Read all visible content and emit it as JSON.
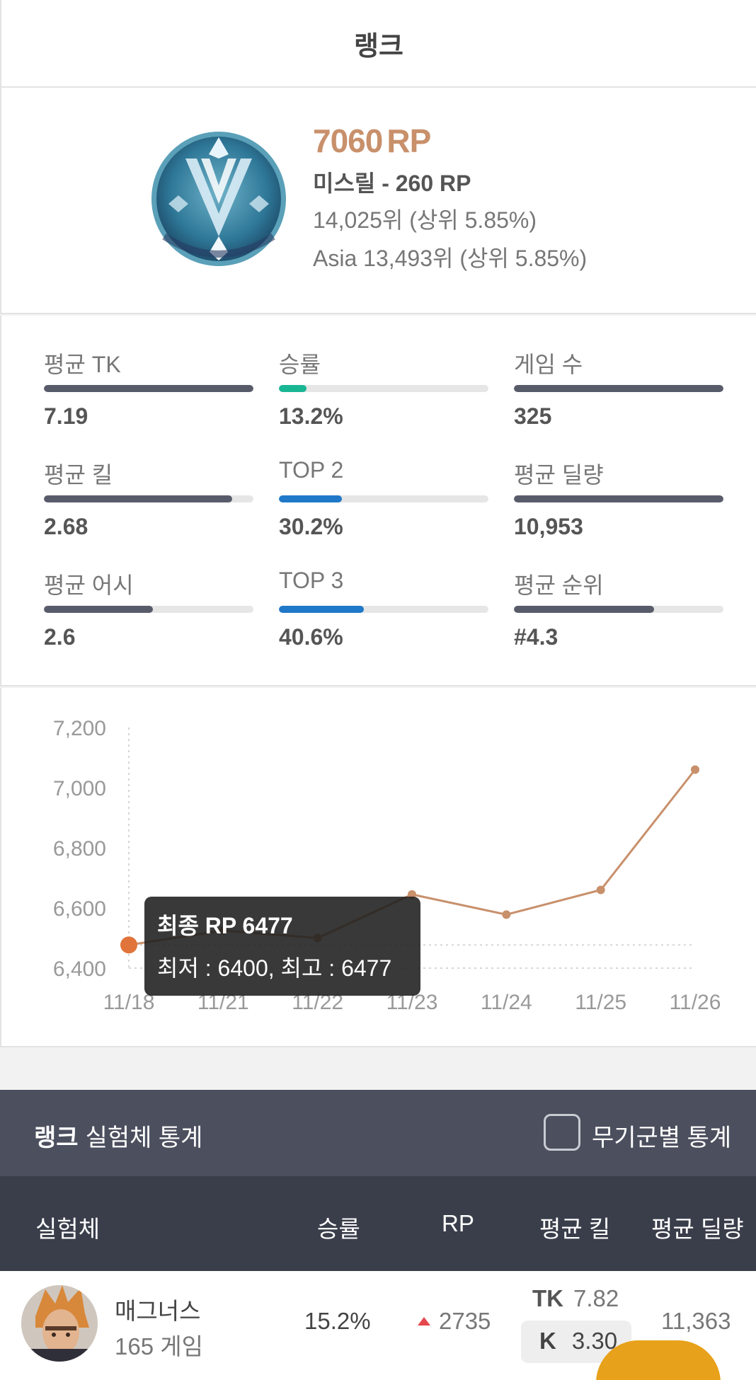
{
  "header": {
    "title": "랭크"
  },
  "rank": {
    "rp_value": "7060",
    "rp_unit": "RP",
    "tier_line": "미스릴 - 260 RP",
    "global_rank": "14,025위 (상위 5.85%)",
    "region_rank": "Asia 13,493위 (상위 5.85%)",
    "emblem_icon": "mithril-tier-emblem-icon"
  },
  "stats": [
    {
      "label": "평균 TK",
      "value": "7.19",
      "bar": 1.0,
      "color": "#585c6a"
    },
    {
      "label": "승률",
      "value": "13.2%",
      "bar": 0.132,
      "color": "#19b694"
    },
    {
      "label": "게임 수",
      "value": "325",
      "bar": 1.0,
      "color": "#585c6a"
    },
    {
      "label": "평균 킬",
      "value": "2.68",
      "bar": 0.9,
      "color": "#585c6a"
    },
    {
      "label": "TOP 2",
      "value": "30.2%",
      "bar": 0.302,
      "color": "#1f78c8"
    },
    {
      "label": "평균 딜량",
      "value": "10,953",
      "bar": 1.0,
      "color": "#585c6a"
    },
    {
      "label": "평균 어시",
      "value": "2.6",
      "bar": 0.52,
      "color": "#585c6a"
    },
    {
      "label": "TOP 3",
      "value": "40.6%",
      "bar": 0.406,
      "color": "#1f78c8"
    },
    {
      "label": "평균 순위",
      "value": "#4.3",
      "bar": 0.67,
      "color": "#585c6a"
    }
  ],
  "chart_data": {
    "type": "line",
    "categories": [
      "11/18",
      "11/21",
      "11/22",
      "11/23",
      "11/24",
      "11/25",
      "11/26"
    ],
    "series": [
      {
        "values": [
          6477,
          6525,
          6500,
          6645,
          6578,
          6660,
          7060
        ]
      }
    ],
    "ylim": [
      6400,
      7200
    ],
    "yticks": [
      "6,400",
      "6,600",
      "6,800",
      "7,000",
      "7,200"
    ],
    "line_color": "#c8906b",
    "tooltip": {
      "title": "최종 RP 6477",
      "detail": "최저 : 6400, 최고 : 6477"
    }
  },
  "stats_bar": {
    "title_bold": "랭크",
    "title_rest": "실험체 통계",
    "weapon_toggle_label": "무기군별 통계"
  },
  "table": {
    "headers": [
      "실험체",
      "승률",
      "RP",
      "평균 킬",
      "평균 딜량"
    ],
    "rows": [
      {
        "name": "매그너스",
        "games": "165 게임",
        "winrate": "15.2%",
        "rp": "2735",
        "tk_label": "TK",
        "tk_value": "7.82",
        "k_label": "K",
        "k_value": "3.30",
        "damage": "11,363",
        "avatar_icon": "magnus-avatar-icon"
      }
    ]
  }
}
